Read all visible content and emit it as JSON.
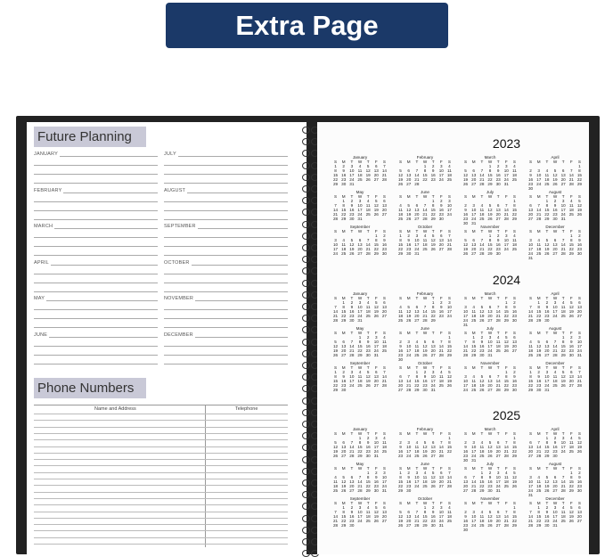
{
  "banner": {
    "label": "Extra Page"
  },
  "left_page": {
    "future_planning": {
      "title": "Future Planning",
      "months_left": [
        "JANUARY",
        "FEBRUARY",
        "MARCH",
        "APRIL",
        "MAY",
        "JUNE"
      ],
      "months_right": [
        "JULY",
        "AUGUST",
        "SEPTEMBER",
        "OCTOBER",
        "NOVEMBER",
        "DECEMBER"
      ]
    },
    "phone_numbers": {
      "title": "Phone Numbers",
      "col_name": "Name and Address",
      "col_phone": "Telephone"
    }
  },
  "right_page": {
    "years": [
      "2023",
      "2024",
      "2025"
    ],
    "month_names": [
      "January",
      "February",
      "March",
      "April",
      "May",
      "June",
      "July",
      "August",
      "September",
      "October",
      "November",
      "December"
    ],
    "weekday_headers": [
      "S",
      "M",
      "T",
      "W",
      "T",
      "F",
      "S"
    ]
  },
  "colors": {
    "banner": "#1b3968",
    "header_box": "#c9c9d7",
    "cover": "#222222"
  }
}
